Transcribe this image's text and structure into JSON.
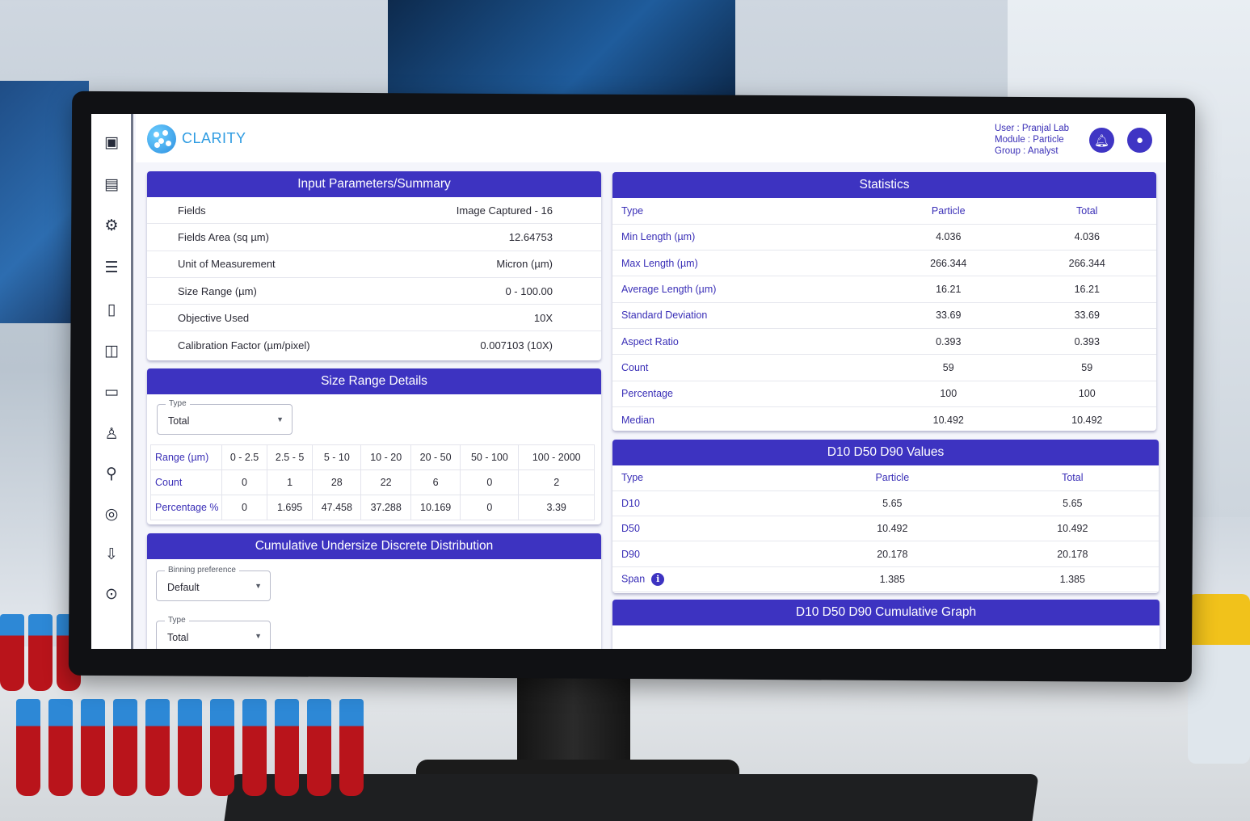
{
  "app": {
    "name": "CLARITY"
  },
  "user_info": {
    "user": "User : Pranjal Lab",
    "module": "Module : Particle",
    "group": "Group : Analyst"
  },
  "icons": {
    "sidebar": [
      "dashboard-icon",
      "report-icon",
      "settings-gear-icon",
      "document-list-icon",
      "clipboard-icon",
      "camera-icon",
      "review-comment-icon",
      "microscope-icon",
      "search-icon",
      "zoom-analysis-icon",
      "export-icon",
      "download-icon"
    ],
    "notification": "bell-icon",
    "profile": "user-profile-icon"
  },
  "input_parameters": {
    "title": "Input Parameters/Summary",
    "rows": [
      {
        "label": "Fields",
        "value": "Image Captured - 16"
      },
      {
        "label": "Fields Area (sq µm)",
        "value": "12.64753"
      },
      {
        "label": "Unit of Measurement",
        "value": "Micron (µm)"
      },
      {
        "label": "Size Range (µm)",
        "value": "0 - 100.00"
      },
      {
        "label": "Objective Used",
        "value": "10X"
      },
      {
        "label": "Calibration Factor (µm/pixel)",
        "value": "0.007103 (10X)"
      }
    ]
  },
  "size_range": {
    "title": "Size Range Details",
    "type_select": {
      "legend": "Type",
      "value": "Total"
    },
    "headers": [
      "Range (µm)",
      "0 - 2.5",
      "2.5 - 5",
      "5 - 10",
      "10 - 20",
      "20 - 50",
      "50 - 100",
      "100 - 2000"
    ],
    "rows": [
      {
        "label": "Count",
        "values": [
          "0",
          "1",
          "28",
          "22",
          "6",
          "0",
          "2"
        ]
      },
      {
        "label": "Percentage %",
        "values": [
          "0",
          "1.695",
          "47.458",
          "37.288",
          "10.169",
          "0",
          "3.39"
        ]
      }
    ]
  },
  "cumulative": {
    "title": "Cumulative Undersize Discrete Distribution",
    "binning_select": {
      "legend": "Binning preference",
      "value": "Default"
    },
    "type_select": {
      "legend": "Type",
      "value": "Total"
    }
  },
  "statistics": {
    "title": "Statistics",
    "headers": [
      "Type",
      "Particle",
      "Total"
    ],
    "rows": [
      {
        "type": "Min Length (µm)",
        "particle": "4.036",
        "total": "4.036"
      },
      {
        "type": "Max Length (µm)",
        "particle": "266.344",
        "total": "266.344"
      },
      {
        "type": "Average Length (µm)",
        "particle": "16.21",
        "total": "16.21"
      },
      {
        "type": "Standard Deviation",
        "particle": "33.69",
        "total": "33.69"
      },
      {
        "type": "Aspect Ratio",
        "particle": "0.393",
        "total": "0.393"
      },
      {
        "type": "Count",
        "particle": "59",
        "total": "59"
      },
      {
        "type": "Percentage",
        "particle": "100",
        "total": "100"
      },
      {
        "type": "Median",
        "particle": "10.492",
        "total": "10.492"
      }
    ]
  },
  "d_values": {
    "title": "D10 D50 D90 Values",
    "headers": [
      "Type",
      "Particle",
      "Total"
    ],
    "rows": [
      {
        "type": "D10",
        "particle": "5.65",
        "total": "5.65"
      },
      {
        "type": "D50",
        "particle": "10.492",
        "total": "10.492"
      },
      {
        "type": "D90",
        "particle": "20.178",
        "total": "20.178"
      },
      {
        "type": "Span",
        "particle": "1.385",
        "total": "1.385"
      }
    ]
  },
  "cumulative_graph": {
    "title": "D10 D50 D90 Cumulative Graph"
  }
}
